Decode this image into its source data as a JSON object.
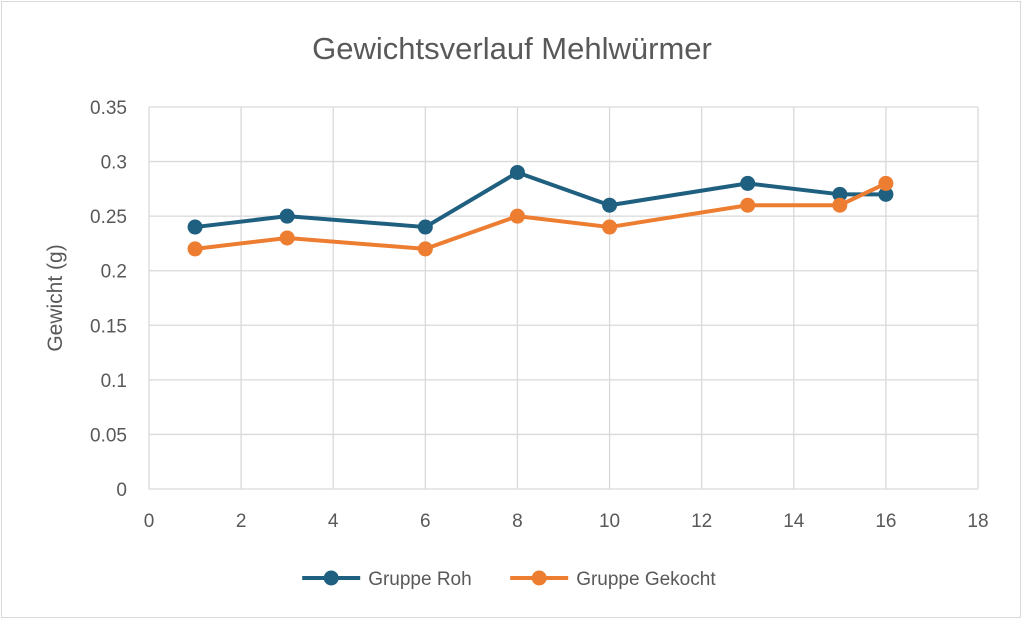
{
  "chart_data": {
    "type": "scatter",
    "title": "Gewichtsverlauf Mehlwürmer",
    "xlabel": "",
    "ylabel": "Gewicht (g)",
    "xlim": [
      0,
      18
    ],
    "ylim": [
      0,
      0.35
    ],
    "x_ticks": [
      0,
      2,
      4,
      6,
      8,
      10,
      12,
      14,
      16,
      18
    ],
    "y_ticks": [
      0,
      0.05,
      0.1,
      0.15,
      0.2,
      0.25,
      0.3,
      0.35
    ],
    "y_tick_labels": [
      "0",
      "0.05",
      "0.1",
      "0.15",
      "0.2",
      "0.25",
      "0.3",
      "0.35"
    ],
    "grid": true,
    "legend_position": "bottom",
    "series": [
      {
        "name": "Gruppe Roh",
        "color": "#1f5f7f",
        "x": [
          1,
          3,
          6,
          8,
          10,
          13,
          15,
          16
        ],
        "y": [
          0.24,
          0.25,
          0.24,
          0.29,
          0.26,
          0.28,
          0.27,
          0.27
        ]
      },
      {
        "name": "Gruppe Gekocht",
        "color": "#ed7d31",
        "x": [
          1,
          3,
          6,
          8,
          10,
          13,
          15,
          16
        ],
        "y": [
          0.22,
          0.23,
          0.22,
          0.25,
          0.24,
          0.26,
          0.26,
          0.28
        ]
      }
    ]
  }
}
